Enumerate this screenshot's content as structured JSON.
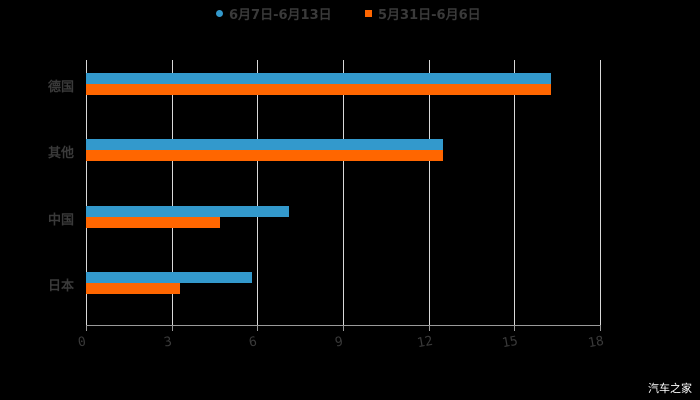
{
  "legend": [
    {
      "label": "6月7日-6月13日",
      "color": "#3399cc",
      "shape": "circle"
    },
    {
      "label": "5月31日-6月6日",
      "color": "#ff6600",
      "shape": "square"
    }
  ],
  "watermark": "汽车之家",
  "chart_data": {
    "type": "bar",
    "orientation": "horizontal",
    "title": "",
    "xlabel": "",
    "ylabel": "",
    "categories": [
      "德国",
      "其他",
      "中国",
      "日本"
    ],
    "series": [
      {
        "name": "6月7日-6月13日",
        "color": "#3399cc",
        "values": [
          16.3,
          12.5,
          7.1,
          5.8
        ]
      },
      {
        "name": "5月31日-6月6日",
        "color": "#ff6600",
        "values": [
          16.3,
          12.5,
          4.7,
          3.3
        ]
      }
    ],
    "xlim": [
      0,
      18
    ],
    "xticks": [
      "0",
      "3",
      "6",
      "9",
      "12",
      "15",
      "18"
    ],
    "grid": true,
    "legend_position": "top"
  }
}
